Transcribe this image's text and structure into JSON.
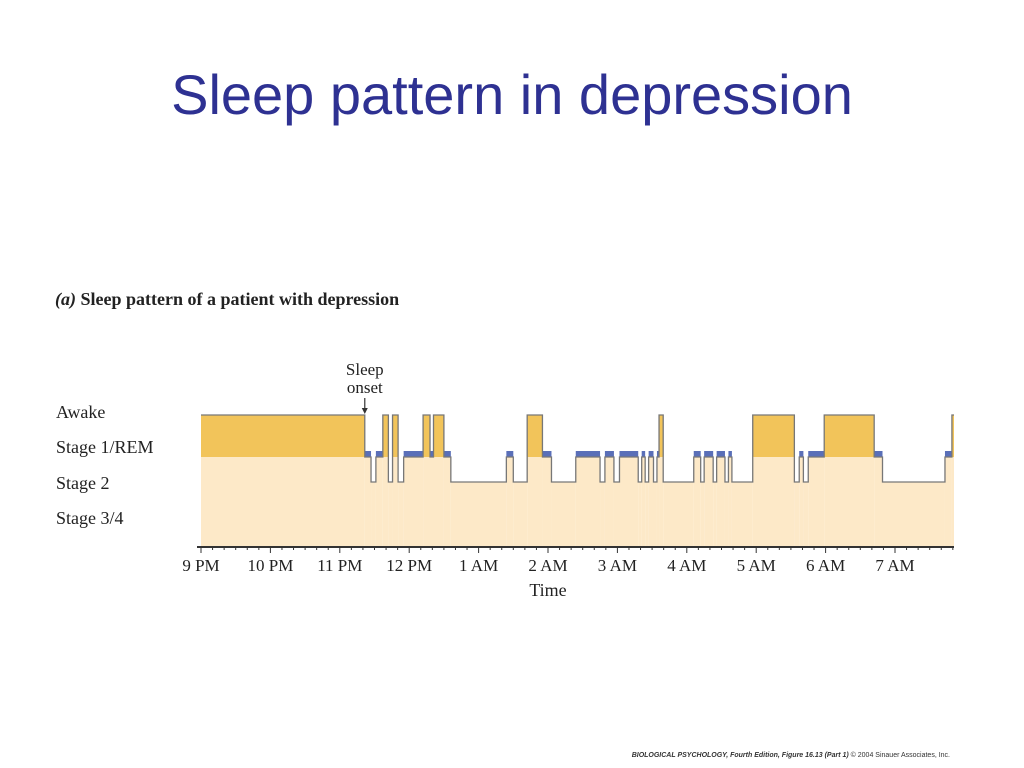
{
  "slide": {
    "title": "Sleep pattern in depression"
  },
  "figure": {
    "caption_letter": "(a)",
    "caption_text": "Sleep pattern of a patient with depression",
    "credit_book": "BIOLOGICAL PSYCHOLOGY, Fourth Edition, Figure 16.13 (Part 1)",
    "credit_copyright": "© 2004 Sinauer Associates, Inc."
  },
  "colors": {
    "title": "#2e3192",
    "awake_fill": "#f2c45a",
    "deep_fill": "#fde9c8",
    "rem_bar": "#5a6fb8",
    "trace": "#777777",
    "axis": "#333333",
    "text": "#222222"
  },
  "chart_data": {
    "type": "area",
    "title": "",
    "xlabel": "Time",
    "ylabel": "",
    "x_unit": "hours after 9 PM",
    "xlim": [
      0,
      10.85
    ],
    "y_categories": [
      "Awake",
      "Stage 1/REM",
      "Stage 2",
      "Stage 3/4"
    ],
    "x_ticks": [
      {
        "label": "9 PM",
        "hour": 0
      },
      {
        "label": "10 PM",
        "hour": 1
      },
      {
        "label": "11 PM",
        "hour": 2
      },
      {
        "label": "12 PM",
        "hour": 3
      },
      {
        "label": "1 AM",
        "hour": 4
      },
      {
        "label": "2 AM",
        "hour": 5
      },
      {
        "label": "3 AM",
        "hour": 6
      },
      {
        "label": "4 AM",
        "hour": 7
      },
      {
        "label": "5 AM",
        "hour": 8
      },
      {
        "label": "6 AM",
        "hour": 9
      },
      {
        "label": "7 AM",
        "hour": 10
      }
    ],
    "annotation": {
      "text": [
        "Sleep",
        "onset"
      ],
      "hour": 2.36
    },
    "stage_segments": [
      {
        "start": 0.0,
        "end": 2.36,
        "stage": "Awake"
      },
      {
        "start": 2.36,
        "end": 2.45,
        "stage": "Stage 1/REM"
      },
      {
        "start": 2.45,
        "end": 2.52,
        "stage": "Stage 2"
      },
      {
        "start": 2.52,
        "end": 2.62,
        "stage": "Stage 1/REM"
      },
      {
        "start": 2.62,
        "end": 2.7,
        "stage": "Awake"
      },
      {
        "start": 2.7,
        "end": 2.76,
        "stage": "Stage 2"
      },
      {
        "start": 2.76,
        "end": 2.84,
        "stage": "Awake"
      },
      {
        "start": 2.84,
        "end": 2.92,
        "stage": "Stage 2"
      },
      {
        "start": 2.92,
        "end": 3.2,
        "stage": "Stage 1/REM"
      },
      {
        "start": 3.2,
        "end": 3.3,
        "stage": "Awake"
      },
      {
        "start": 3.3,
        "end": 3.35,
        "stage": "Stage 1/REM"
      },
      {
        "start": 3.35,
        "end": 3.5,
        "stage": "Awake"
      },
      {
        "start": 3.5,
        "end": 3.6,
        "stage": "Stage 1/REM"
      },
      {
        "start": 3.6,
        "end": 4.4,
        "stage": "Stage 2"
      },
      {
        "start": 4.4,
        "end": 4.5,
        "stage": "Stage 1/REM"
      },
      {
        "start": 4.5,
        "end": 4.7,
        "stage": "Stage 2"
      },
      {
        "start": 4.7,
        "end": 4.92,
        "stage": "Awake"
      },
      {
        "start": 4.92,
        "end": 5.05,
        "stage": "Stage 1/REM"
      },
      {
        "start": 5.05,
        "end": 5.4,
        "stage": "Stage 2"
      },
      {
        "start": 5.4,
        "end": 5.75,
        "stage": "Stage 1/REM"
      },
      {
        "start": 5.75,
        "end": 5.82,
        "stage": "Stage 2"
      },
      {
        "start": 5.82,
        "end": 5.95,
        "stage": "Stage 1/REM"
      },
      {
        "start": 5.95,
        "end": 6.03,
        "stage": "Stage 2"
      },
      {
        "start": 6.03,
        "end": 6.3,
        "stage": "Stage 1/REM"
      },
      {
        "start": 6.3,
        "end": 6.35,
        "stage": "Stage 2"
      },
      {
        "start": 6.35,
        "end": 6.4,
        "stage": "Stage 1/REM"
      },
      {
        "start": 6.4,
        "end": 6.45,
        "stage": "Stage 2"
      },
      {
        "start": 6.45,
        "end": 6.52,
        "stage": "Stage 1/REM"
      },
      {
        "start": 6.52,
        "end": 6.57,
        "stage": "Stage 2"
      },
      {
        "start": 6.57,
        "end": 6.6,
        "stage": "Stage 1/REM"
      },
      {
        "start": 6.6,
        "end": 6.66,
        "stage": "Awake"
      },
      {
        "start": 6.66,
        "end": 7.1,
        "stage": "Stage 2"
      },
      {
        "start": 7.1,
        "end": 7.2,
        "stage": "Stage 1/REM"
      },
      {
        "start": 7.2,
        "end": 7.25,
        "stage": "Stage 2"
      },
      {
        "start": 7.25,
        "end": 7.38,
        "stage": "Stage 1/REM"
      },
      {
        "start": 7.38,
        "end": 7.43,
        "stage": "Stage 2"
      },
      {
        "start": 7.43,
        "end": 7.55,
        "stage": "Stage 1/REM"
      },
      {
        "start": 7.55,
        "end": 7.6,
        "stage": "Stage 2"
      },
      {
        "start": 7.6,
        "end": 7.65,
        "stage": "Stage 1/REM"
      },
      {
        "start": 7.65,
        "end": 7.95,
        "stage": "Stage 2"
      },
      {
        "start": 7.95,
        "end": 8.55,
        "stage": "Awake"
      },
      {
        "start": 8.55,
        "end": 8.62,
        "stage": "Stage 2"
      },
      {
        "start": 8.62,
        "end": 8.68,
        "stage": "Stage 1/REM"
      },
      {
        "start": 8.68,
        "end": 8.75,
        "stage": "Stage 2"
      },
      {
        "start": 8.75,
        "end": 8.98,
        "stage": "Stage 1/REM"
      },
      {
        "start": 8.98,
        "end": 9.7,
        "stage": "Awake"
      },
      {
        "start": 9.7,
        "end": 9.82,
        "stage": "Stage 1/REM"
      },
      {
        "start": 9.82,
        "end": 10.72,
        "stage": "Stage 2"
      },
      {
        "start": 10.72,
        "end": 10.82,
        "stage": "Stage 1/REM"
      },
      {
        "start": 10.82,
        "end": 10.85,
        "stage": "Awake"
      }
    ]
  }
}
